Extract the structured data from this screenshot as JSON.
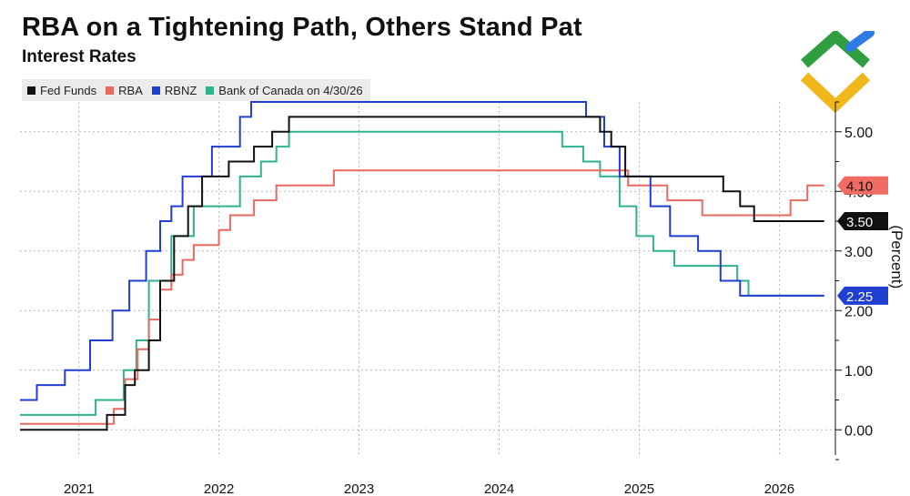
{
  "title": "RBA on a Tightening Path, Others Stand Pat",
  "subtitle": "Interest Rates",
  "legend": [
    {
      "label": "Fed Funds",
      "color": "#111111"
    },
    {
      "label": "RBA",
      "color": "#e8695f"
    },
    {
      "label": "RBNZ",
      "color": "#1f3fd1"
    },
    {
      "label": "Bank of Canada on 4/30/26",
      "color": "#2fb38f"
    }
  ],
  "logo": {
    "icon": "arrows-logo",
    "colors": [
      "#2f9e3f",
      "#f0b71b",
      "#2e7be6"
    ]
  },
  "chart_data": {
    "type": "line",
    "title": "RBA on a Tightening Path, Others Stand Pat",
    "subtitle": "Interest Rates",
    "ylabel": "(Percent)",
    "xlabel": "",
    "ylim": [
      -0.5,
      5.5
    ],
    "xlim": [
      2020.58,
      2026.4
    ],
    "yticks": [
      0,
      1,
      2,
      3,
      4,
      5
    ],
    "ytick_labels": [
      "0.00",
      "1.00",
      "2.00",
      "3.00",
      "4.00",
      "5.00"
    ],
    "xticks": [
      2021,
      2022,
      2023,
      2024,
      2025,
      2026
    ],
    "xtick_labels": [
      "2021",
      "2022",
      "2023",
      "2024",
      "2025",
      "2026"
    ],
    "grid": true,
    "legend_position": "top-left",
    "series": [
      {
        "name": "Fed Funds",
        "color": "#111111",
        "last_value": "3.50",
        "points": [
          [
            2020.58,
            0.0
          ],
          [
            2021.2,
            0.0
          ],
          [
            2021.2,
            0.25
          ],
          [
            2021.33,
            0.25
          ],
          [
            2021.33,
            0.75
          ],
          [
            2021.4,
            0.75
          ],
          [
            2021.4,
            1.0
          ],
          [
            2021.5,
            1.0
          ],
          [
            2021.5,
            1.5
          ],
          [
            2021.58,
            1.5
          ],
          [
            2021.58,
            2.5
          ],
          [
            2021.68,
            2.5
          ],
          [
            2021.68,
            3.25
          ],
          [
            2021.78,
            3.25
          ],
          [
            2021.78,
            3.75
          ],
          [
            2021.88,
            3.75
          ],
          [
            2021.88,
            4.25
          ],
          [
            2022.07,
            4.25
          ],
          [
            2022.07,
            4.5
          ],
          [
            2022.25,
            4.5
          ],
          [
            2022.25,
            4.75
          ],
          [
            2022.38,
            4.75
          ],
          [
            2022.38,
            5.0
          ],
          [
            2022.5,
            5.0
          ],
          [
            2022.5,
            5.25
          ],
          [
            2024.72,
            5.25
          ],
          [
            2024.72,
            5.0
          ],
          [
            2024.8,
            5.0
          ],
          [
            2024.8,
            4.75
          ],
          [
            2024.9,
            4.75
          ],
          [
            2024.9,
            4.25
          ],
          [
            2025.6,
            4.25
          ],
          [
            2025.6,
            4.0
          ],
          [
            2025.72,
            4.0
          ],
          [
            2025.72,
            3.75
          ],
          [
            2025.82,
            3.75
          ],
          [
            2025.82,
            3.5
          ],
          [
            2026.32,
            3.5
          ]
        ]
      },
      {
        "name": "RBA",
        "color": "#e8695f",
        "last_value": "4.10",
        "points": [
          [
            2020.58,
            0.1
          ],
          [
            2021.25,
            0.1
          ],
          [
            2021.25,
            0.35
          ],
          [
            2021.33,
            0.35
          ],
          [
            2021.33,
            0.85
          ],
          [
            2021.42,
            0.85
          ],
          [
            2021.42,
            1.35
          ],
          [
            2021.5,
            1.35
          ],
          [
            2021.5,
            1.85
          ],
          [
            2021.58,
            1.85
          ],
          [
            2021.58,
            2.35
          ],
          [
            2021.66,
            2.35
          ],
          [
            2021.66,
            2.6
          ],
          [
            2021.74,
            2.6
          ],
          [
            2021.74,
            2.85
          ],
          [
            2021.82,
            2.85
          ],
          [
            2021.82,
            3.1
          ],
          [
            2022.0,
            3.1
          ],
          [
            2022.0,
            3.35
          ],
          [
            2022.08,
            3.35
          ],
          [
            2022.08,
            3.6
          ],
          [
            2022.25,
            3.6
          ],
          [
            2022.25,
            3.85
          ],
          [
            2022.41,
            3.85
          ],
          [
            2022.41,
            4.1
          ],
          [
            2022.82,
            4.1
          ],
          [
            2022.82,
            4.35
          ],
          [
            2024.92,
            4.35
          ],
          [
            2024.92,
            4.1
          ],
          [
            2025.2,
            4.1
          ],
          [
            2025.2,
            3.85
          ],
          [
            2025.45,
            3.85
          ],
          [
            2025.45,
            3.6
          ],
          [
            2026.08,
            3.6
          ],
          [
            2026.08,
            3.85
          ],
          [
            2026.2,
            3.85
          ],
          [
            2026.2,
            4.1
          ],
          [
            2026.32,
            4.1
          ]
        ]
      },
      {
        "name": "RBNZ",
        "color": "#1f3fd1",
        "last_value": "2.25",
        "points": [
          [
            2020.58,
            0.5
          ],
          [
            2020.7,
            0.5
          ],
          [
            2020.7,
            0.75
          ],
          [
            2020.9,
            0.75
          ],
          [
            2020.9,
            1.0
          ],
          [
            2021.08,
            1.0
          ],
          [
            2021.08,
            1.5
          ],
          [
            2021.24,
            1.5
          ],
          [
            2021.24,
            2.0
          ],
          [
            2021.36,
            2.0
          ],
          [
            2021.36,
            2.5
          ],
          [
            2021.48,
            2.5
          ],
          [
            2021.48,
            3.0
          ],
          [
            2021.58,
            3.0
          ],
          [
            2021.58,
            3.5
          ],
          [
            2021.66,
            3.5
          ],
          [
            2021.66,
            3.75
          ],
          [
            2021.74,
            3.75
          ],
          [
            2021.74,
            4.25
          ],
          [
            2021.95,
            4.25
          ],
          [
            2021.95,
            4.75
          ],
          [
            2022.15,
            4.75
          ],
          [
            2022.15,
            5.25
          ],
          [
            2022.23,
            5.25
          ],
          [
            2022.23,
            5.5
          ],
          [
            2024.62,
            5.5
          ],
          [
            2024.62,
            5.25
          ],
          [
            2024.75,
            5.25
          ],
          [
            2024.75,
            4.75
          ],
          [
            2024.86,
            4.75
          ],
          [
            2024.86,
            4.25
          ],
          [
            2025.08,
            4.25
          ],
          [
            2025.08,
            3.75
          ],
          [
            2025.22,
            3.75
          ],
          [
            2025.22,
            3.25
          ],
          [
            2025.42,
            3.25
          ],
          [
            2025.42,
            3.0
          ],
          [
            2025.58,
            3.0
          ],
          [
            2025.58,
            2.5
          ],
          [
            2025.72,
            2.5
          ],
          [
            2025.72,
            2.25
          ],
          [
            2026.32,
            2.25
          ]
        ]
      },
      {
        "name": "Bank of Canada on 4/30/26",
        "color": "#2fb38f",
        "last_value": "2.25",
        "points": [
          [
            2020.58,
            0.25
          ],
          [
            2021.12,
            0.25
          ],
          [
            2021.12,
            0.5
          ],
          [
            2021.32,
            0.5
          ],
          [
            2021.32,
            1.0
          ],
          [
            2021.41,
            1.0
          ],
          [
            2021.41,
            1.5
          ],
          [
            2021.5,
            1.5
          ],
          [
            2021.5,
            2.5
          ],
          [
            2021.66,
            2.5
          ],
          [
            2021.66,
            3.25
          ],
          [
            2021.82,
            3.25
          ],
          [
            2021.82,
            3.75
          ],
          [
            2022.15,
            3.75
          ],
          [
            2022.15,
            4.25
          ],
          [
            2022.3,
            4.25
          ],
          [
            2022.3,
            4.5
          ],
          [
            2022.41,
            4.5
          ],
          [
            2022.41,
            4.75
          ],
          [
            2022.5,
            4.75
          ],
          [
            2022.5,
            5.0
          ],
          [
            2024.45,
            5.0
          ],
          [
            2024.45,
            4.75
          ],
          [
            2024.6,
            4.75
          ],
          [
            2024.6,
            4.5
          ],
          [
            2024.72,
            4.5
          ],
          [
            2024.72,
            4.25
          ],
          [
            2024.86,
            4.25
          ],
          [
            2024.86,
            3.75
          ],
          [
            2024.98,
            3.75
          ],
          [
            2024.98,
            3.25
          ],
          [
            2025.1,
            3.25
          ],
          [
            2025.1,
            3.0
          ],
          [
            2025.25,
            3.0
          ],
          [
            2025.25,
            2.75
          ],
          [
            2025.7,
            2.75
          ],
          [
            2025.7,
            2.5
          ],
          [
            2025.78,
            2.5
          ],
          [
            2025.78,
            2.25
          ],
          [
            2026.32,
            2.25
          ]
        ]
      }
    ],
    "end_labels": [
      {
        "text": "4.10",
        "value": 4.1,
        "bg": "#f06b63",
        "fg": "#111111"
      },
      {
        "text": "3.50",
        "value": 3.5,
        "bg": "#111111",
        "fg": "#ffffff"
      },
      {
        "text": "2.25",
        "value": 2.25,
        "bg": "#1f3fd1",
        "fg": "#ffffff"
      }
    ]
  }
}
